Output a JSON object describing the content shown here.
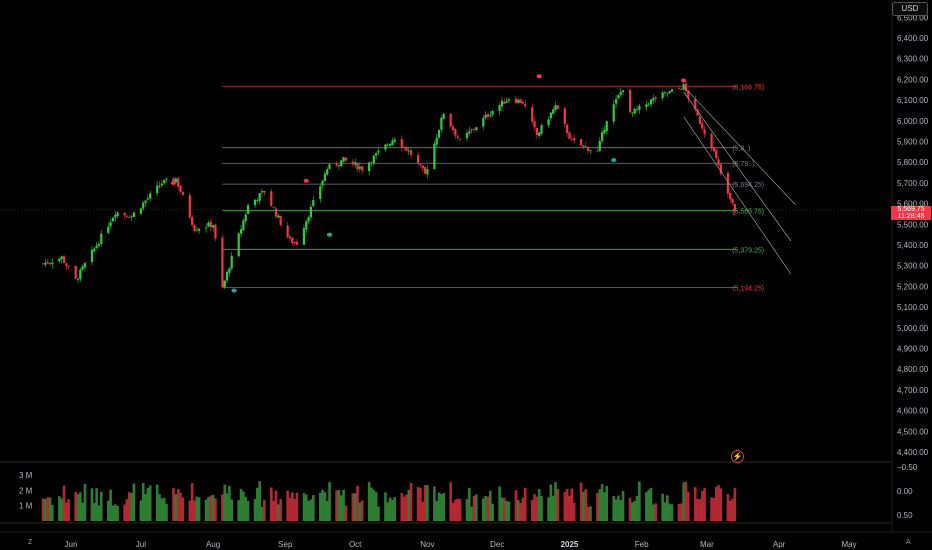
{
  "currency": "USD",
  "last_price": "5,569.75",
  "countdown": "11:28:45",
  "corner_left": "Z",
  "corner_right": "A",
  "colors": {
    "up": "#26a69a",
    "up_candle": "#2ecc40",
    "down": "#f23645",
    "grid": "#1a1a1a"
  },
  "chart_data": [
    {
      "type": "candlestick",
      "title": "",
      "y_axis_ticks": [
        "6,500.00",
        "6,400.00",
        "6,300.00",
        "6,200.00",
        "6,100.00",
        "6,000.00",
        "5,900.00",
        "5,800.00",
        "5,700.00",
        "5,600.00",
        "5,500.00",
        "5,400.00",
        "5,300.00",
        "5,200.00",
        "5,100.00",
        "5,000.00",
        "4,900.00",
        "4,800.00",
        "4,700.00",
        "4,600.00",
        "4,500.00",
        "4,400.00"
      ],
      "ylim": [
        4400,
        6500
      ],
      "x_axis_ticks": [
        "Jun",
        "Jul",
        "Aug",
        "Sep",
        "Oct",
        "Nov",
        "Dec",
        "2025",
        "Feb",
        "Mar",
        "Apr",
        "May"
      ],
      "x_tick_dates": [
        "2024-06-01",
        "2024-07-01",
        "2024-08-01",
        "2024-09-01",
        "2024-10-01",
        "2024-11-01",
        "2024-12-01",
        "2025-01-01",
        "2025-02-01",
        "2025-03-01",
        "2025-04-01",
        "2025-05-01"
      ],
      "price_path": [
        [
          "2024-05-20",
          5310
        ],
        [
          "2024-05-28",
          5340
        ],
        [
          "2024-06-03",
          5230
        ],
        [
          "2024-06-12",
          5400
        ],
        [
          "2024-06-20",
          5560
        ],
        [
          "2024-06-27",
          5540
        ],
        [
          "2024-07-10",
          5700
        ],
        [
          "2024-07-16",
          5720
        ],
        [
          "2024-07-24",
          5480
        ],
        [
          "2024-08-01",
          5500
        ],
        [
          "2024-08-05",
          5190
        ],
        [
          "2024-08-16",
          5590
        ],
        [
          "2024-08-23",
          5660
        ],
        [
          "2024-09-03",
          5420
        ],
        [
          "2024-09-06",
          5410
        ],
        [
          "2024-09-19",
          5770
        ],
        [
          "2024-09-26",
          5810
        ],
        [
          "2024-10-04",
          5770
        ],
        [
          "2024-10-18",
          5920
        ],
        [
          "2024-10-25",
          5840
        ],
        [
          "2024-10-31",
          5740
        ],
        [
          "2024-11-08",
          6040
        ],
        [
          "2024-11-15",
          5900
        ],
        [
          "2024-11-29",
          6050
        ],
        [
          "2024-12-06",
          6110
        ],
        [
          "2024-12-12",
          6090
        ],
        [
          "2024-12-18",
          5930
        ],
        [
          "2024-12-26",
          6070
        ],
        [
          "2025-01-02",
          5900
        ],
        [
          "2025-01-13",
          5850
        ],
        [
          "2025-01-17",
          6010
        ],
        [
          "2025-01-24",
          6160
        ],
        [
          "2025-01-27",
          6030
        ],
        [
          "2025-02-07",
          6110
        ],
        [
          "2025-02-19",
          6166
        ],
        [
          "2025-02-24",
          6040
        ],
        [
          "2025-03-03",
          5880
        ],
        [
          "2025-03-10",
          5640
        ],
        [
          "2025-03-13",
          5570
        ]
      ],
      "fib_levels": [
        {
          "label": "(6,166.75)",
          "value": 6166.75,
          "color": "#f23645"
        },
        {
          "label": "(5,8..)",
          "value": 5870,
          "color": "#787b86"
        },
        {
          "label": "(5,79..)",
          "value": 5795,
          "color": "#787b86"
        },
        {
          "label": "(5,694.25)",
          "value": 5694.25,
          "color": "#787b86"
        },
        {
          "label": "(5,565.75)",
          "value": 5565.75,
          "color": "#4caf50"
        },
        {
          "label": "(5,379.25)",
          "value": 5379.25,
          "color": "#4caf50"
        },
        {
          "label": "(5,194.25)",
          "value": 5194.25,
          "color": "#f23645"
        }
      ],
      "fib_start_date": "2024-08-05",
      "fib_end_date": "2025-03-14",
      "channel": {
        "lines": [
          {
            "from": [
              "2025-02-19",
              6166
            ],
            "to": [
              "2025-04-08",
              5595
            ]
          },
          {
            "from": [
              "2025-02-19",
              6140
            ],
            "to": [
              "2025-04-06",
              5420
            ]
          },
          {
            "from": [
              "2025-02-19",
              6020
            ],
            "to": [
              "2025-04-06",
              5260
            ]
          }
        ]
      },
      "markers": [
        {
          "date": "2024-07-15",
          "value": 5700,
          "color": "#f23645"
        },
        {
          "date": "2024-08-10",
          "value": 5180,
          "color": "#26a69a"
        },
        {
          "date": "2024-09-10",
          "value": 5710,
          "color": "#f23645"
        },
        {
          "date": "2024-09-20",
          "value": 5450,
          "color": "#26a69a"
        },
        {
          "date": "2024-12-19",
          "value": 6215,
          "color": "#f23645"
        },
        {
          "date": "2025-01-20",
          "value": 5810,
          "color": "#26a69a"
        },
        {
          "date": "2025-02-19",
          "value": 6195,
          "color": "#f23645"
        }
      ],
      "volume": {
        "axis_ticks": [
          "3 M",
          "2 M",
          "1 M"
        ],
        "axis_values": [
          3,
          2,
          1
        ],
        "ylim": [
          0,
          3.4
        ],
        "unit": "M"
      },
      "oscillator": {
        "axis_ticks": [
          "0.50",
          "0.00",
          "−0.50"
        ],
        "axis_values": [
          0.5,
          0.0,
          -0.5
        ],
        "ylim": [
          -0.65,
          0.65
        ]
      }
    }
  ]
}
